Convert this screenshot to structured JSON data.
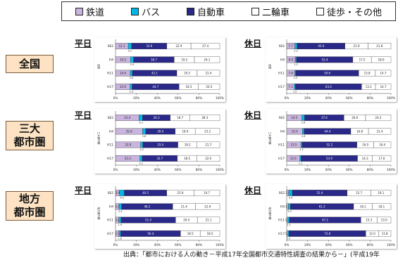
{
  "legend": {
    "items": [
      {
        "label": "鉄道",
        "color": "#c8b4dc"
      },
      {
        "label": "バス",
        "color": "#00b8e8"
      },
      {
        "label": "自動車",
        "color": "#2a2888"
      },
      {
        "label": "二輪車",
        "color": "#ffffff"
      },
      {
        "label": "徒歩・その他",
        "color": "#ffffff"
      }
    ]
  },
  "regions": [
    {
      "label": "全国"
    },
    {
      "label": "三大\n都市圏"
    },
    {
      "label": "地方\n都市圏"
    }
  ],
  "day_labels": {
    "weekday": "平日",
    "holiday": "休日"
  },
  "chart_data": [
    {
      "type": "bar",
      "stacked": true,
      "orientation": "horizontal",
      "region": "全国",
      "day": "平日",
      "ylabel": "全国",
      "categories": [
        "S62",
        "H4",
        "H11",
        "H17"
      ],
      "xticks": [
        "0%",
        "20%",
        "40%",
        "60%",
        "80%",
        "100%"
      ],
      "xlim": [
        0,
        100
      ],
      "series": [
        {
          "name": "鉄道",
          "values": [
            12.1,
            14.2,
            14.0,
            13.9
          ]
        },
        {
          "name": "バス",
          "values": [
            3.1,
            2.9,
            2.0,
            1.9
          ]
        },
        {
          "name": "自動車",
          "values": [
            33.6,
            38.7,
            42.1,
            44.7
          ]
        },
        {
          "name": "二輪車",
          "values": [
            22.9,
            19.2,
            19.3,
            18.5
          ]
        },
        {
          "name": "徒歩・その他",
          "values": [
            27.4,
            24.1,
            21.4,
            20.3
          ]
        }
      ]
    },
    {
      "type": "bar",
      "stacked": true,
      "orientation": "horizontal",
      "region": "全国",
      "day": "休日",
      "ylabel": "全国",
      "categories": [
        "S62",
        "H4",
        "H11",
        "H17"
      ],
      "xticks": [
        "0%",
        "20%",
        "40%",
        "60%",
        "80%",
        "100%"
      ],
      "xlim": [
        0,
        100
      ],
      "series": [
        {
          "name": "鉄道",
          "values": [
            7.7,
            8.0,
            7.6,
            7.3
          ]
        },
        {
          "name": "バス",
          "values": [
            2.2,
            1.3,
            1.0,
            1.0
          ]
        },
        {
          "name": "自動車",
          "values": [
            45.6,
            53.4,
            59.6,
            63.0
          ]
        },
        {
          "name": "二輪車",
          "values": [
            21.9,
            17.5,
            15.8,
            13.2
          ]
        },
        {
          "name": "徒歩・その他",
          "values": [
            21.8,
            18.6,
            14.7,
            14.7
          ]
        }
      ]
    },
    {
      "type": "bar",
      "stacked": true,
      "orientation": "horizontal",
      "region": "三大都市圏",
      "day": "平日",
      "ylabel": "三大都市圏",
      "categories": [
        "S62",
        "H4",
        "H11",
        "H17"
      ],
      "xticks": [
        "0%",
        "20%",
        "40%",
        "60%",
        "80%",
        "100%"
      ],
      "xlim": [
        0,
        100
      ],
      "series": [
        {
          "name": "鉄道",
          "values": [
            22.4,
            25.6,
            23.9,
            23.3
          ]
        },
        {
          "name": "バス",
          "values": [
            3.3,
            2.8,
            2.2,
            2.1
          ]
        },
        {
          "name": "自動車",
          "values": [
            26.3,
            28.0,
            33.4,
            33.7
          ]
        },
        {
          "name": "二輪車",
          "values": [
            18.7,
            18.9,
            18.2,
            18.5
          ]
        },
        {
          "name": "徒歩・その他",
          "values": [
            28.3,
            23.2,
            21.7,
            22.0
          ]
        }
      ]
    },
    {
      "type": "bar",
      "stacked": true,
      "orientation": "horizontal",
      "region": "三大都市圏",
      "day": "休日",
      "ylabel": "三大都市圏",
      "categories": [
        "S62",
        "H4",
        "H11",
        "H17"
      ],
      "xticks": [
        "0%",
        "20%",
        "40%",
        "60%",
        "80%",
        "100%"
      ],
      "xlim": [
        0,
        100
      ],
      "series": [
        {
          "name": "鉄道",
          "values": [
            14.5,
            15.0,
            13.5,
            12.6
          ]
        },
        {
          "name": "バス",
          "values": [
            2.6,
            1.6,
            1.2,
            1.1
          ]
        },
        {
          "name": "自動車",
          "values": [
            37.6,
            44.4,
            52.2,
            53.9
          ]
        },
        {
          "name": "二輪車",
          "values": [
            20.6,
            16.8,
            16.0,
            14.3
          ]
        },
        {
          "name": "徒歩・その他",
          "values": [
            24.2,
            21.4,
            16.4,
            17.6
          ]
        }
      ]
    },
    {
      "type": "bar",
      "stacked": true,
      "orientation": "horizontal",
      "region": "地方都市圏",
      "day": "平日",
      "ylabel": "地方都市圏",
      "categories": [
        "S62",
        "H4",
        "H11",
        "H17"
      ],
      "xticks": [
        "0%",
        "20%",
        "40%",
        "60%",
        "80%",
        "100%"
      ],
      "xlim": [
        0,
        100
      ],
      "series": [
        {
          "name": "鉄道",
          "values": [
            3.9,
            3.3,
            3.2,
            3.3
          ]
        },
        {
          "name": "バス",
          "values": [
            4.5,
            2.4,
            1.9,
            1.6
          ]
        },
        {
          "name": "自動車",
          "values": [
            40.5,
            48.2,
            51.4,
            56.4
          ]
        },
        {
          "name": "二輪車",
          "values": [
            25.9,
            21.4,
            20.4,
            18.5
          ]
        },
        {
          "name": "徒歩・その他",
          "values": [
            24.7,
            22.9,
            21.1,
            18.5
          ]
        }
      ]
    },
    {
      "type": "bar",
      "stacked": true,
      "orientation": "horizontal",
      "region": "地方都市圏",
      "day": "休日",
      "ylabel": "地方都市圏",
      "categories": [
        "S62",
        "H4",
        "H11",
        "H17"
      ],
      "xticks": [
        "0%",
        "20%",
        "40%",
        "60%",
        "80%",
        "100%"
      ],
      "xlim": [
        0,
        100
      ],
      "series": [
        {
          "name": "鉄道",
          "values": [
            2.0,
            1.7,
            1.2,
            1.3
          ]
        },
        {
          "name": "バス",
          "values": [
            3.4,
            2.0,
            1.3,
            1.0
          ]
        },
        {
          "name": "自動車",
          "values": [
            52.4,
            61.2,
            67.2,
            72.6
          ]
        },
        {
          "name": "二輪車",
          "values": [
            22.7,
            18.1,
            15.3,
            12.0
          ]
        },
        {
          "name": "徒歩・その他",
          "values": [
            19.1,
            18.1,
            13.0,
            11.8
          ]
        }
      ]
    }
  ],
  "source": "出典：「都市における人の動き－平成17年全国都市交通特性調査の結果から－」(平成19年"
}
